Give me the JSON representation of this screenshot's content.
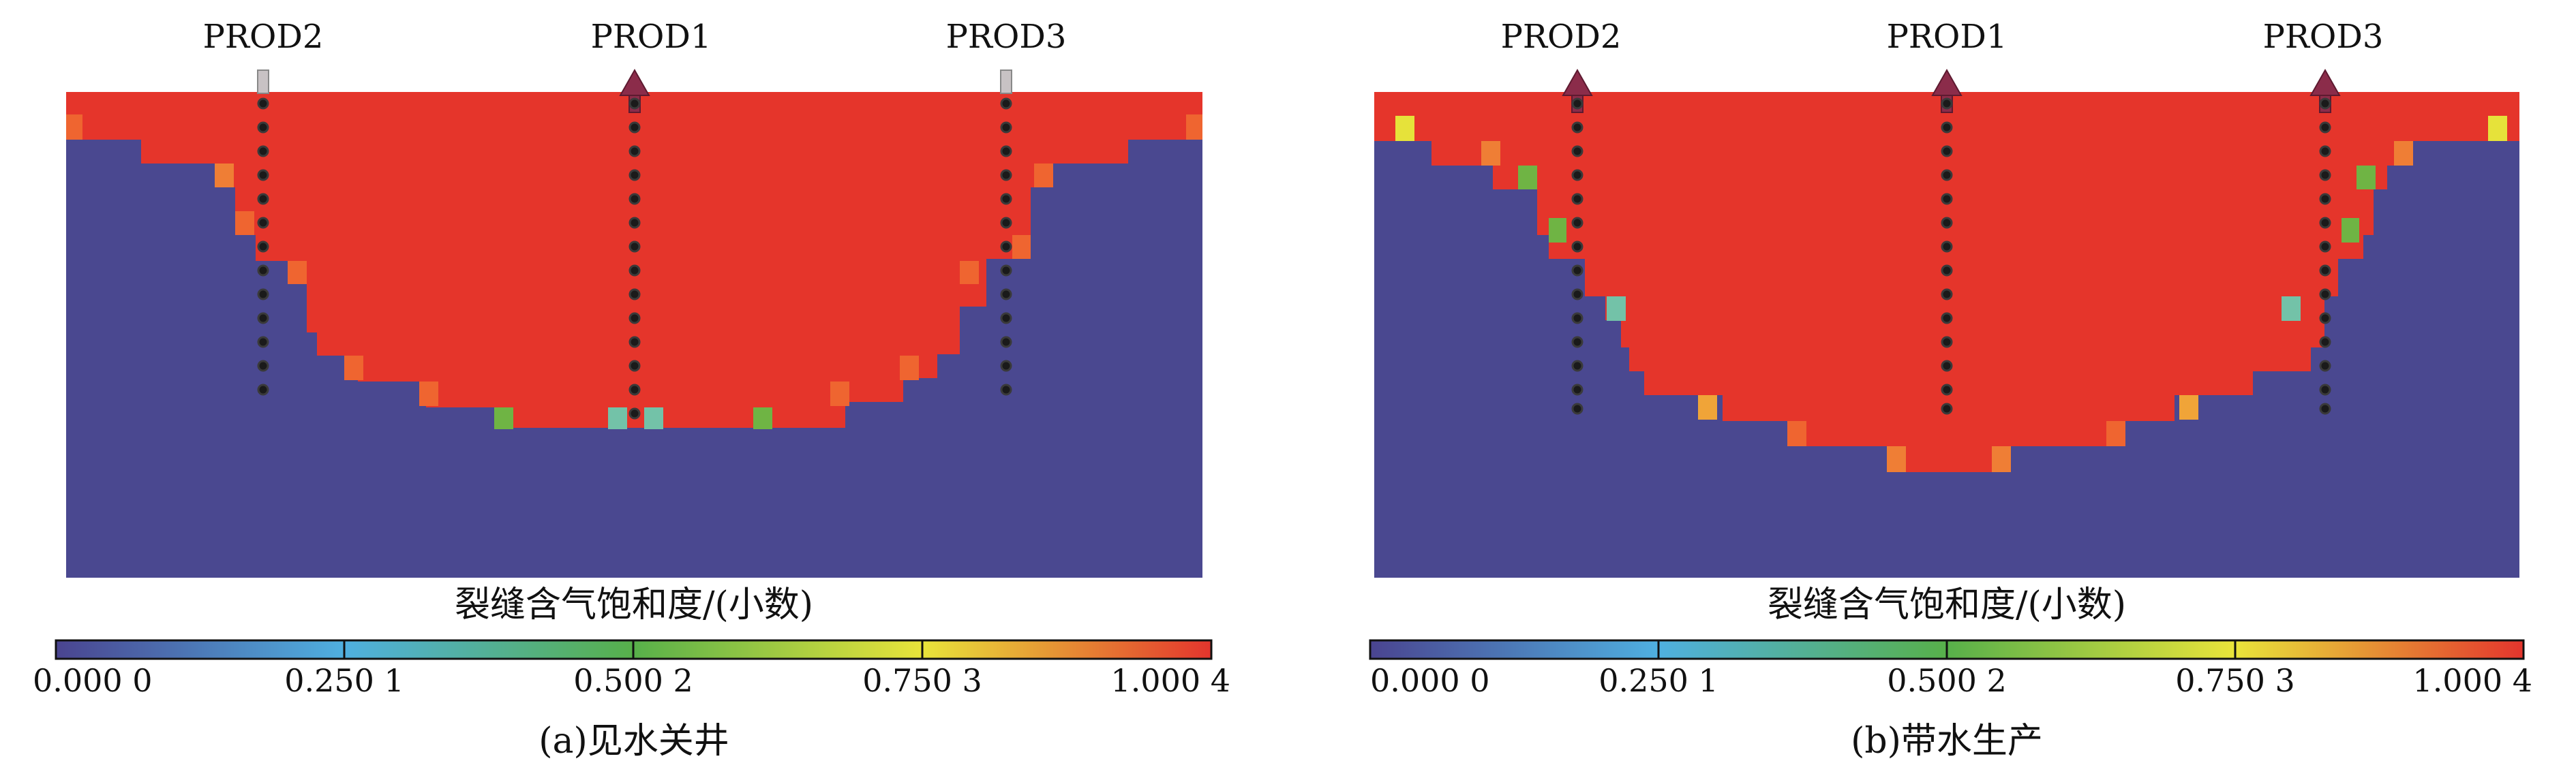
{
  "colorbar": {
    "title": "裂缝含气饱和度/(小数)",
    "ticks": [
      "0.000 0",
      "0.250 1",
      "0.500 2",
      "0.750 3",
      "1.000 4"
    ],
    "stops": [
      "#4a4490",
      "#4fb0e0",
      "#57b04a",
      "#e9e43a",
      "#e3352d"
    ]
  },
  "colors": {
    "water": "#4a4890",
    "gas": "#e5352b",
    "well_dot": "#1a1a1a",
    "arrow": "#8b2c4a"
  },
  "panels": [
    {
      "caption": "(a)见水关井",
      "wells": [
        {
          "name": "PROD2",
          "status": "shut-in"
        },
        {
          "name": "PROD1",
          "status": "producing"
        },
        {
          "name": "PROD3",
          "status": "shut-in"
        }
      ]
    },
    {
      "caption": "(b)带水生产",
      "wells": [
        {
          "name": "PROD2",
          "status": "producing"
        },
        {
          "name": "PROD1",
          "status": "producing"
        },
        {
          "name": "PROD3",
          "status": "producing"
        }
      ]
    }
  ]
}
